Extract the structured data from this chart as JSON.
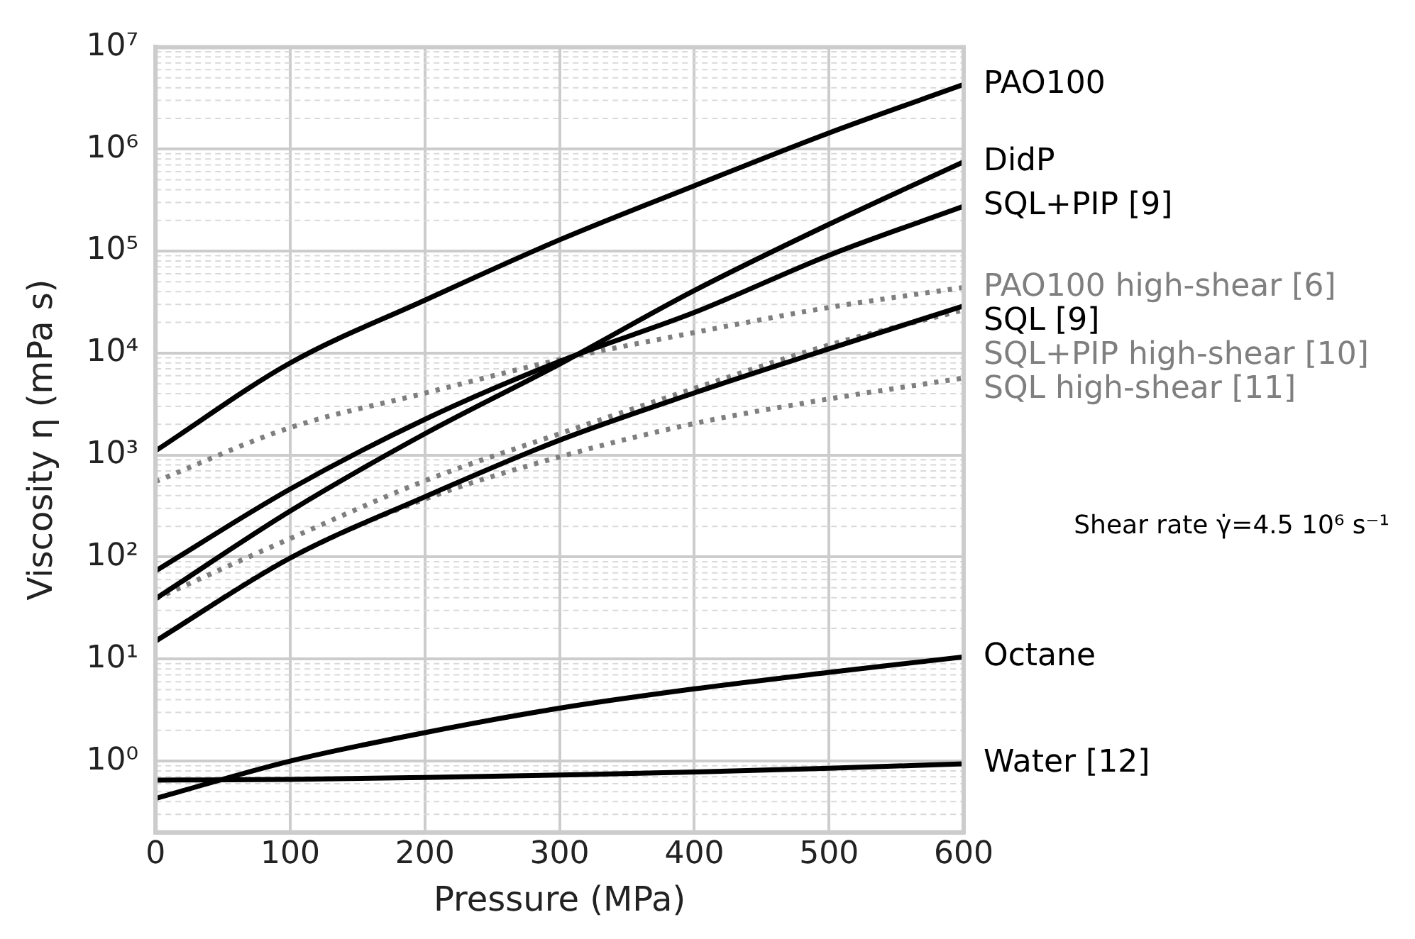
{
  "chart_data": {
    "type": "line",
    "xlabel": "Pressure (MPa)",
    "ylabel": "Viscosity η (mPa s)",
    "log": "y",
    "grid": true,
    "marker": "none",
    "xlim": [
      0,
      600
    ],
    "xticks": [
      0,
      100,
      200,
      300,
      400,
      500,
      600
    ],
    "ylim": [
      0.2,
      10000000
    ],
    "yticks": [
      {
        "value": 0.2,
        "label": null
      },
      {
        "value": 0.3,
        "label": null
      },
      {
        "value": 0.4,
        "label": null
      },
      {
        "value": 0.5,
        "label": null
      },
      {
        "value": 0.6,
        "label": null
      },
      {
        "value": 0.7,
        "label": null
      },
      {
        "value": 0.8,
        "label": null
      },
      {
        "value": 0.9,
        "label": null
      },
      {
        "value": 1,
        "label": "10⁰"
      },
      {
        "value": 2,
        "label": null
      },
      {
        "value": 3,
        "label": null
      },
      {
        "value": 4,
        "label": null
      },
      {
        "value": 5,
        "label": null
      },
      {
        "value": 6,
        "label": null
      },
      {
        "value": 7,
        "label": null
      },
      {
        "value": 8,
        "label": null
      },
      {
        "value": 9,
        "label": null
      },
      {
        "value": 10,
        "label": "10¹"
      },
      {
        "value": 20,
        "label": null
      },
      {
        "value": 30,
        "label": null
      },
      {
        "value": 40,
        "label": null
      },
      {
        "value": 50,
        "label": null
      },
      {
        "value": 60,
        "label": null
      },
      {
        "value": 70,
        "label": null
      },
      {
        "value": 80,
        "label": null
      },
      {
        "value": 90,
        "label": null
      },
      {
        "value": 100,
        "label": "10²"
      },
      {
        "value": 200,
        "label": null
      },
      {
        "value": 300,
        "label": null
      },
      {
        "value": 400,
        "label": null
      },
      {
        "value": 500,
        "label": null
      },
      {
        "value": 600,
        "label": null
      },
      {
        "value": 700,
        "label": null
      },
      {
        "value": 800,
        "label": null
      },
      {
        "value": 900,
        "label": null
      },
      {
        "value": 1000,
        "label": "10³"
      },
      {
        "value": 2000,
        "label": null
      },
      {
        "value": 3000,
        "label": null
      },
      {
        "value": 4000,
        "label": null
      },
      {
        "value": 5000,
        "label": null
      },
      {
        "value": 6000,
        "label": null
      },
      {
        "value": 7000,
        "label": null
      },
      {
        "value": 8000,
        "label": null
      },
      {
        "value": 9000,
        "label": null
      },
      {
        "value": 10000,
        "label": "10⁴"
      },
      {
        "value": 20000,
        "label": null
      },
      {
        "value": 30000,
        "label": null
      },
      {
        "value": 40000,
        "label": null
      },
      {
        "value": 50000,
        "label": null
      },
      {
        "value": 60000,
        "label": null
      },
      {
        "value": 70000,
        "label": null
      },
      {
        "value": 80000,
        "label": null
      },
      {
        "value": 90000,
        "label": null
      },
      {
        "value": 100000,
        "label": "10⁵"
      },
      {
        "value": 200000,
        "label": null
      },
      {
        "value": 300000,
        "label": null
      },
      {
        "value": 400000,
        "label": null
      },
      {
        "value": 500000,
        "label": null
      },
      {
        "value": 600000,
        "label": null
      },
      {
        "value": 700000,
        "label": null
      },
      {
        "value": 800000,
        "label": null
      },
      {
        "value": 900000,
        "label": null
      },
      {
        "value": 1000000,
        "label": "10⁶"
      },
      {
        "value": 2000000,
        "label": null
      },
      {
        "value": 3000000,
        "label": null
      },
      {
        "value": 4000000,
        "label": null
      },
      {
        "value": 5000000,
        "label": null
      },
      {
        "value": 6000000,
        "label": null
      },
      {
        "value": 7000000,
        "label": null
      },
      {
        "value": 8000000,
        "label": null
      },
      {
        "value": 9000000,
        "label": null
      },
      {
        "value": 10000000,
        "label": "10⁷"
      }
    ],
    "x": [
      0,
      100,
      200,
      300,
      400,
      500,
      600
    ],
    "annotations": [
      "Shear rate γ̇=4.5 10⁶ s⁻¹"
    ],
    "series": [
      {
        "name": "PAO100",
        "color": "#000000",
        "line_style": "solid",
        "values": [
          1100,
          8000,
          33000,
          129000,
          437000,
          1440000,
          4300000
        ]
      },
      {
        "name": "DidP",
        "color": "#000000",
        "line_style": "solid",
        "values": [
          39,
          283,
          1620,
          7800,
          41000,
          183000,
          750000
        ]
      },
      {
        "name": "SQL+PIP [9]",
        "color": "#000000",
        "line_style": "solid",
        "values": [
          73,
          465,
          2240,
          8300,
          25000,
          91000,
          275000
        ]
      },
      {
        "name": "PAO100 high-shear [6]",
        "color": "#7f7f7f",
        "line_style": "dotted",
        "values": [
          550,
          1860,
          4050,
          8600,
          15900,
          28000,
          44000
        ]
      },
      {
        "name": "SQL [9]",
        "color": "#000000",
        "line_style": "solid",
        "values": [
          15,
          98,
          390,
          1400,
          4070,
          11000,
          29000
        ]
      },
      {
        "name": "SQL+PIP high-shear [10]",
        "color": "#7f7f7f",
        "line_style": "dotted",
        "values": [
          39,
          152,
          560,
          1620,
          4500,
          12000,
          26500
        ]
      },
      {
        "name": "SQL high-shear [11]",
        "color": "#7f7f7f",
        "line_style": "dotted",
        "values": [
          15,
          98,
          370,
          960,
          2040,
          3550,
          5700
        ]
      },
      {
        "name": "Octane",
        "color": "#000000",
        "line_style": "solid",
        "values": [
          0.43,
          1,
          1.9,
          3.3,
          5.1,
          7.4,
          10.5
        ]
      },
      {
        "name": "Water [12]",
        "color": "#000000",
        "line_style": "solid",
        "values": [
          0.65,
          0.66,
          0.69,
          0.73,
          0.78,
          0.85,
          0.94
        ]
      }
    ]
  }
}
